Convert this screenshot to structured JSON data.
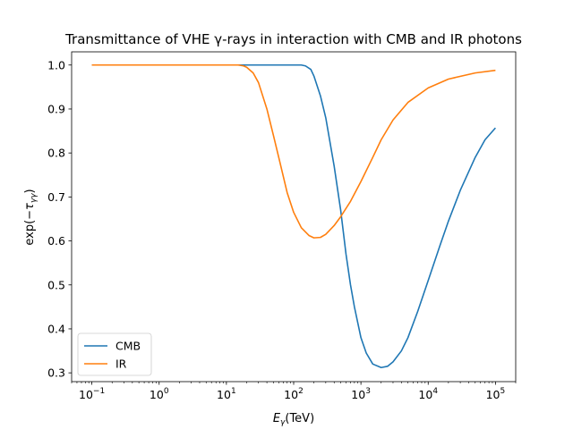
{
  "chart_data": {
    "type": "line",
    "title": "Transmittance of VHE γ-rays in interaction with CMB and IR photons",
    "xlabel": "Eγ(TeV)",
    "ylabel": "exp(−τγγ)",
    "x_scale": "log",
    "xlim": [
      0.05,
      200000
    ],
    "ylim": [
      0.28,
      1.03
    ],
    "x_ticks": [
      {
        "value": 0.1,
        "base": "10",
        "exp": "−1"
      },
      {
        "value": 1,
        "base": "10",
        "exp": "0"
      },
      {
        "value": 10,
        "base": "10",
        "exp": "1"
      },
      {
        "value": 100,
        "base": "10",
        "exp": "2"
      },
      {
        "value": 1000,
        "base": "10",
        "exp": "3"
      },
      {
        "value": 10000,
        "base": "10",
        "exp": "4"
      },
      {
        "value": 100000,
        "base": "10",
        "exp": "5"
      }
    ],
    "y_ticks": [
      {
        "value": 0.3,
        "label": "0.3"
      },
      {
        "value": 0.4,
        "label": "0.4"
      },
      {
        "value": 0.5,
        "label": "0.5"
      },
      {
        "value": 0.6,
        "label": "0.6"
      },
      {
        "value": 0.7,
        "label": "0.7"
      },
      {
        "value": 0.8,
        "label": "0.8"
      },
      {
        "value": 0.9,
        "label": "0.9"
      },
      {
        "value": 1.0,
        "label": "1.0"
      }
    ],
    "grid": false,
    "legend": {
      "placement": "lower-left"
    },
    "series": [
      {
        "name": "CMB",
        "color": "#1f77b4",
        "x": [
          0.1,
          1,
          10,
          50,
          100,
          130,
          150,
          180,
          200,
          250,
          300,
          400,
          500,
          600,
          700,
          800,
          1000,
          1200,
          1500,
          2000,
          2500,
          3000,
          4000,
          5000,
          7000,
          10000,
          15000,
          20000,
          30000,
          50000,
          70000,
          100000
        ],
        "y": [
          1.0,
          1.0,
          1.0,
          1.0,
          1.0,
          1.0,
          0.998,
          0.99,
          0.975,
          0.93,
          0.88,
          0.77,
          0.67,
          0.57,
          0.5,
          0.45,
          0.38,
          0.345,
          0.32,
          0.312,
          0.315,
          0.325,
          0.35,
          0.38,
          0.44,
          0.51,
          0.59,
          0.645,
          0.715,
          0.79,
          0.83,
          0.857
        ]
      },
      {
        "name": "IR",
        "color": "#ff7f0e",
        "x": [
          0.1,
          1,
          10,
          15,
          18,
          20,
          25,
          30,
          40,
          50,
          60,
          80,
          100,
          130,
          170,
          200,
          250,
          300,
          400,
          500,
          700,
          1000,
          1500,
          2000,
          3000,
          5000,
          10000,
          20000,
          50000,
          100000
        ],
        "y": [
          1.0,
          1.0,
          1.0,
          1.0,
          0.998,
          0.995,
          0.982,
          0.96,
          0.9,
          0.84,
          0.79,
          0.71,
          0.665,
          0.63,
          0.612,
          0.607,
          0.608,
          0.615,
          0.635,
          0.655,
          0.69,
          0.735,
          0.79,
          0.83,
          0.875,
          0.915,
          0.948,
          0.968,
          0.982,
          0.988
        ]
      }
    ]
  }
}
